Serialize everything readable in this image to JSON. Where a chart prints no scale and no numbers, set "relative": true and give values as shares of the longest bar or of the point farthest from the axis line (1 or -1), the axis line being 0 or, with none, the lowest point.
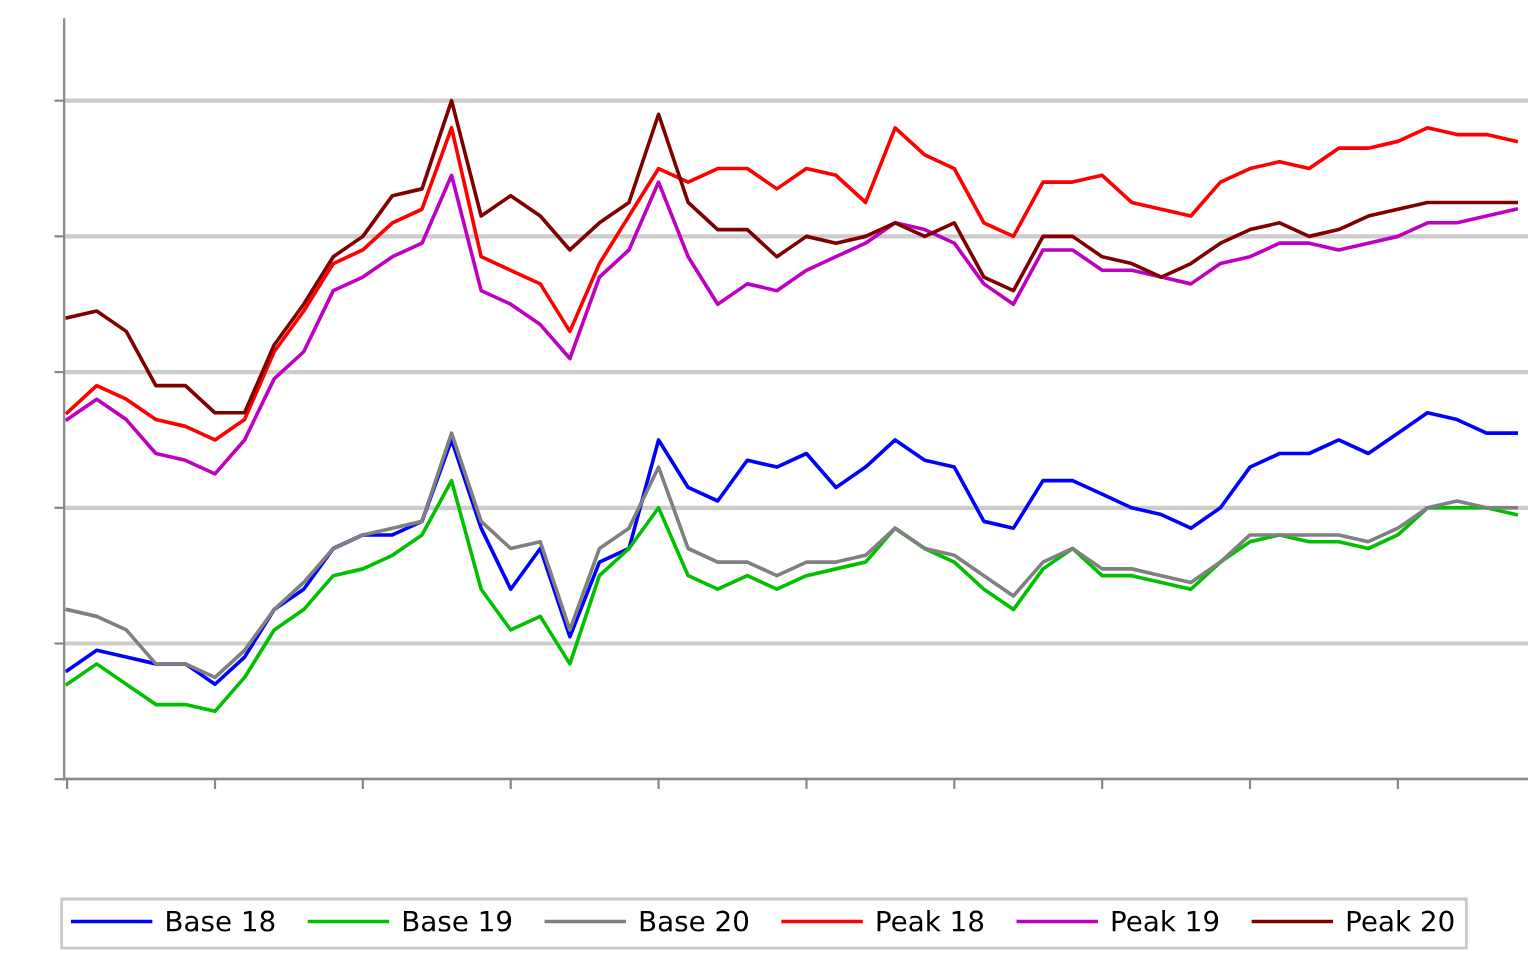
{
  "chart_data": {
    "type": "line",
    "relative": true,
    "grid": "y",
    "legend": "bottom",
    "line_style": "solid",
    "marker": "none",
    "categories": [
      null,
      null,
      null,
      null,
      null,
      null,
      null,
      null,
      null,
      null,
      null,
      null,
      null,
      null,
      null,
      null,
      null,
      null,
      null,
      null,
      null,
      null,
      null,
      null,
      null,
      null,
      null,
      null,
      null,
      null,
      null,
      null,
      null,
      null,
      null,
      null,
      null,
      null,
      null,
      null,
      null,
      null,
      null,
      null,
      null,
      null,
      null,
      null,
      null,
      null
    ],
    "series": [
      {
        "name": "Base 18",
        "color": "#0000ff",
        "values": [
          0.16,
          0.19,
          0.18,
          0.17,
          0.17,
          0.14,
          0.18,
          0.25,
          0.28,
          0.34,
          0.36,
          0.36,
          0.38,
          0.5,
          0.37,
          0.28,
          0.34,
          0.21,
          0.32,
          0.34,
          0.5,
          0.43,
          0.41,
          0.47,
          0.46,
          0.48,
          0.43,
          0.46,
          0.5,
          0.47,
          0.46,
          0.38,
          0.37,
          0.44,
          0.44,
          0.42,
          0.4,
          0.39,
          0.37,
          0.4,
          0.46,
          0.48,
          0.48,
          0.5,
          0.48,
          0.51,
          0.54,
          0.53,
          0.51,
          0.51
        ]
      },
      {
        "name": "Base 19",
        "color": "#00c000",
        "values": [
          0.14,
          0.17,
          0.14,
          0.11,
          0.11,
          0.1,
          0.15,
          0.22,
          0.25,
          0.3,
          0.31,
          0.33,
          0.36,
          0.44,
          0.28,
          0.22,
          0.24,
          0.17,
          0.3,
          0.34,
          0.4,
          0.3,
          0.28,
          0.3,
          0.28,
          0.3,
          0.31,
          0.32,
          0.37,
          0.34,
          0.32,
          0.28,
          0.25,
          0.31,
          0.34,
          0.3,
          0.3,
          0.29,
          0.28,
          0.32,
          0.35,
          0.36,
          0.35,
          0.35,
          0.34,
          0.36,
          0.4,
          0.4,
          0.4,
          0.39
        ]
      },
      {
        "name": "Base 20",
        "color": "#808080",
        "values": [
          0.25,
          0.24,
          0.22,
          0.17,
          0.17,
          0.15,
          0.19,
          0.25,
          0.29,
          0.34,
          0.36,
          0.37,
          0.38,
          0.51,
          0.38,
          0.34,
          0.35,
          0.22,
          0.34,
          0.37,
          0.46,
          0.34,
          0.32,
          0.32,
          0.3,
          0.32,
          0.32,
          0.33,
          0.37,
          0.34,
          0.33,
          0.3,
          0.27,
          0.32,
          0.34,
          0.31,
          0.31,
          0.3,
          0.29,
          0.32,
          0.36,
          0.36,
          0.36,
          0.36,
          0.35,
          0.37,
          0.4,
          0.41,
          0.4,
          0.4
        ]
      },
      {
        "name": "Peak 18",
        "color": "#ff0000",
        "values": [
          0.54,
          0.58,
          0.56,
          0.53,
          0.52,
          0.5,
          0.53,
          0.63,
          0.69,
          0.76,
          0.78,
          0.82,
          0.84,
          0.96,
          0.77,
          0.75,
          0.73,
          0.66,
          0.76,
          0.83,
          0.9,
          0.88,
          0.9,
          0.9,
          0.87,
          0.9,
          0.89,
          0.85,
          0.96,
          0.92,
          0.9,
          0.82,
          0.8,
          0.88,
          0.88,
          0.89,
          0.85,
          0.84,
          0.83,
          0.88,
          0.9,
          0.91,
          0.9,
          0.93,
          0.93,
          0.94,
          0.96,
          0.95,
          0.95,
          0.94
        ]
      },
      {
        "name": "Peak 19",
        "color": "#c000c0",
        "values": [
          0.53,
          0.56,
          0.53,
          0.48,
          0.47,
          0.45,
          0.5,
          0.59,
          0.63,
          0.72,
          0.74,
          0.77,
          0.79,
          0.89,
          0.72,
          0.7,
          0.67,
          0.62,
          0.74,
          0.78,
          0.88,
          0.77,
          0.7,
          0.73,
          0.72,
          0.75,
          0.77,
          0.79,
          0.82,
          0.81,
          0.79,
          0.73,
          0.7,
          0.78,
          0.78,
          0.75,
          0.75,
          0.74,
          0.73,
          0.76,
          0.77,
          0.79,
          0.79,
          0.78,
          0.79,
          0.8,
          0.82,
          0.82,
          0.83,
          0.84
        ]
      },
      {
        "name": "Peak 20",
        "color": "#800000",
        "values": [
          0.68,
          0.69,
          0.66,
          0.58,
          0.58,
          0.54,
          0.54,
          0.64,
          0.7,
          0.77,
          0.8,
          0.86,
          0.87,
          1.0,
          0.83,
          0.86,
          0.83,
          0.78,
          0.82,
          0.85,
          0.98,
          0.85,
          0.81,
          0.81,
          0.77,
          0.8,
          0.79,
          0.8,
          0.82,
          0.8,
          0.82,
          0.74,
          0.72,
          0.8,
          0.8,
          0.77,
          0.76,
          0.74,
          0.76,
          0.79,
          0.81,
          0.82,
          0.8,
          0.81,
          0.83,
          0.84,
          0.85,
          0.85,
          0.85,
          0.85
        ]
      }
    ]
  }
}
